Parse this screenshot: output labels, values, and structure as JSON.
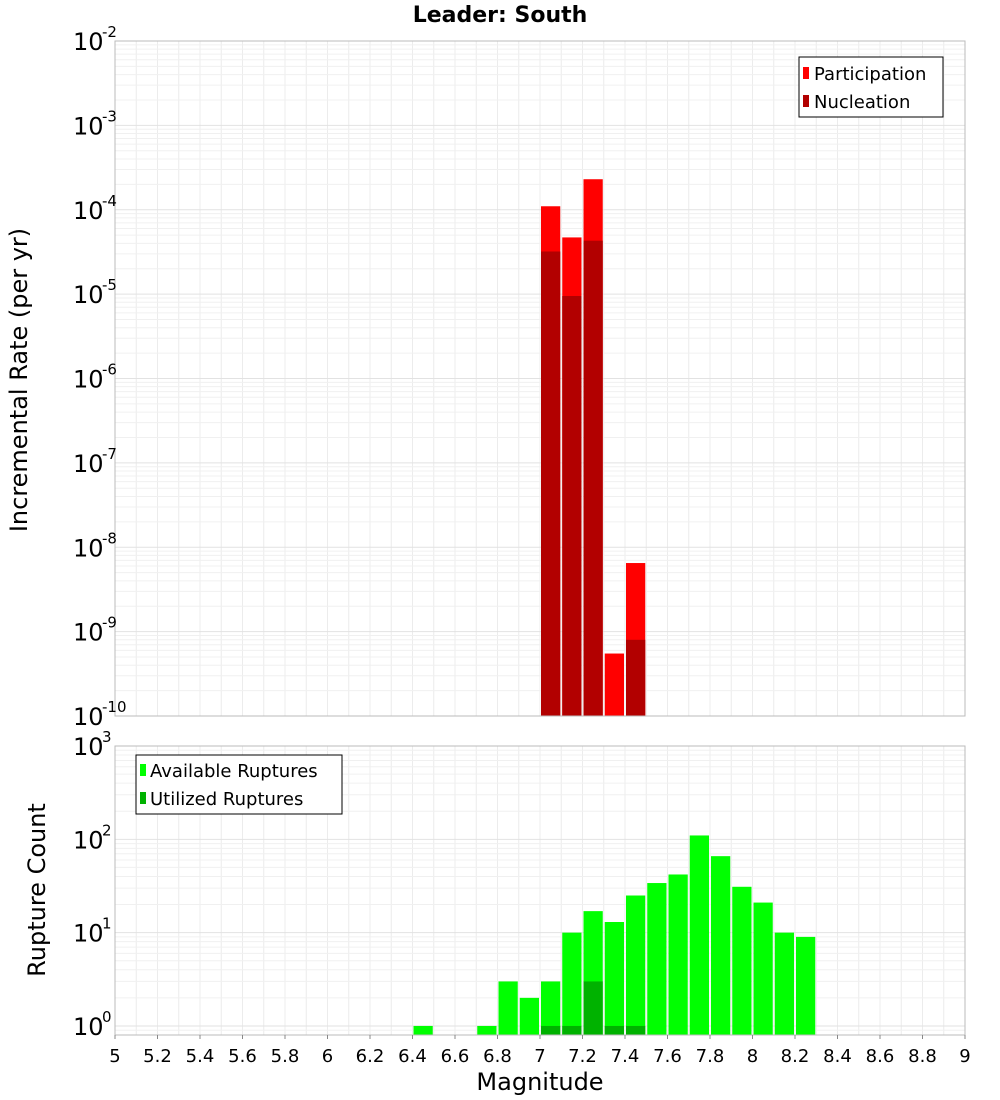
{
  "chart_data": [
    {
      "type": "bar",
      "title": "Leader: South",
      "ylabel": "Incremental Rate (per yr)",
      "yscale": "log",
      "ylim": [
        1e-10,
        0.01
      ],
      "xlim": [
        5,
        9
      ],
      "grid": true,
      "legend": "top-right",
      "series": [
        {
          "name": "Participation",
          "color": "#ff0000",
          "x": [
            7.05,
            7.15,
            7.25,
            7.35,
            7.45
          ],
          "values": [
            0.00011,
            4.7e-05,
            0.00023,
            5.5e-10,
            6.5e-09
          ]
        },
        {
          "name": "Nucleation",
          "color": "#b20000",
          "x": [
            7.05,
            7.15,
            7.25,
            7.45
          ],
          "values": [
            3.2e-05,
            9.5e-06,
            4.3e-05,
            8e-10
          ]
        }
      ],
      "yticks": [
        {
          "base": "10",
          "exp": "-10",
          "value": 1e-10
        },
        {
          "base": "10",
          "exp": "-9",
          "value": 1e-09
        },
        {
          "base": "10",
          "exp": "-8",
          "value": 1e-08
        },
        {
          "base": "10",
          "exp": "-7",
          "value": 1e-07
        },
        {
          "base": "10",
          "exp": "-6",
          "value": 1e-06
        },
        {
          "base": "10",
          "exp": "-5",
          "value": 1e-05
        },
        {
          "base": "10",
          "exp": "-4",
          "value": 0.0001
        },
        {
          "base": "10",
          "exp": "-3",
          "value": 0.001
        },
        {
          "base": "10",
          "exp": "-2",
          "value": 0.01
        }
      ]
    },
    {
      "type": "bar",
      "ylabel": "Rupture Count",
      "xlabel": "Magnitude",
      "yscale": "log",
      "ylim": [
        0.8,
        1000
      ],
      "xlim": [
        5,
        9
      ],
      "grid": true,
      "legend": "top-left",
      "series": [
        {
          "name": "Available Ruptures",
          "color": "#00ff00",
          "x": [
            6.45,
            6.75,
            6.85,
            6.95,
            7.05,
            7.15,
            7.25,
            7.35,
            7.45,
            7.55,
            7.65,
            7.75,
            7.85,
            7.95,
            8.05,
            8.15,
            8.25
          ],
          "values": [
            1,
            1,
            3,
            2,
            3,
            10,
            17,
            13,
            25,
            34,
            42,
            110,
            66,
            31,
            21,
            10,
            9
          ]
        },
        {
          "name": "Utilized Ruptures",
          "color": "#00b200",
          "x": [
            7.05,
            7.15,
            7.25,
            7.35,
            7.45
          ],
          "values": [
            1,
            1,
            3,
            1,
            1
          ]
        }
      ],
      "yticks": [
        {
          "base": "10",
          "exp": "0",
          "value": 1
        },
        {
          "base": "10",
          "exp": "1",
          "value": 10
        },
        {
          "base": "10",
          "exp": "2",
          "value": 100
        },
        {
          "base": "10",
          "exp": "3",
          "value": 1000
        }
      ],
      "xticks": [
        "5",
        "5.2",
        "5.4",
        "5.6",
        "5.8",
        "6",
        "6.2",
        "6.4",
        "6.6",
        "6.8",
        "7",
        "7.2",
        "7.4",
        "7.6",
        "7.8",
        "8",
        "8.2",
        "8.4",
        "8.6",
        "8.8",
        "9"
      ]
    }
  ]
}
